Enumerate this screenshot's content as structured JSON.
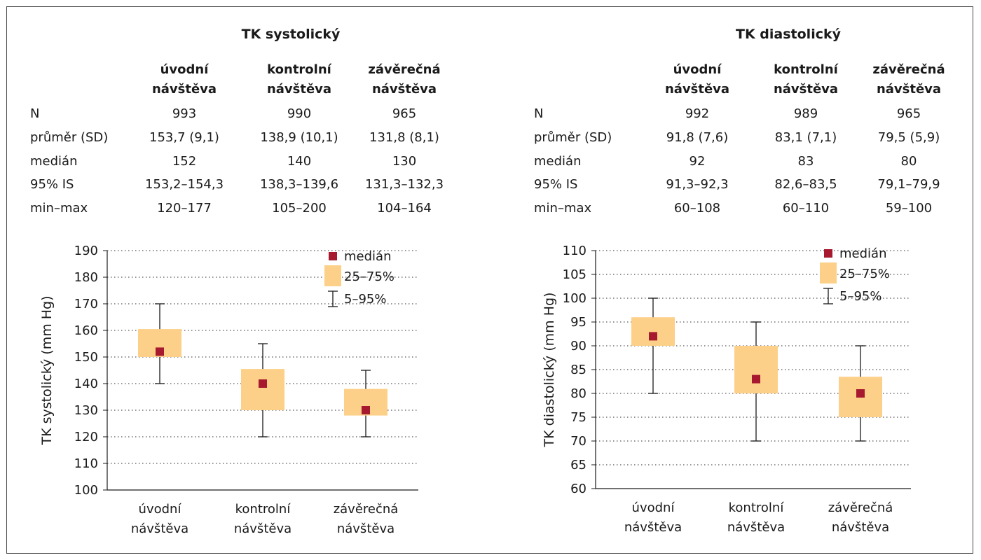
{
  "colors": {
    "median": "#a6192e",
    "box": "#fdd089",
    "whisker": "#1a1a1a",
    "grid": "#555555"
  },
  "panels": [
    {
      "title": "TK systolický",
      "col_headers": [
        [
          "úvodní",
          "návštěva"
        ],
        [
          "kontrolní",
          "návštěva"
        ],
        [
          "závěrečná",
          "návštěva"
        ]
      ],
      "rows": [
        {
          "label": "N",
          "values": [
            "993",
            "990",
            "965"
          ]
        },
        {
          "label": "průměr (SD)",
          "values": [
            "153,7 (9,1)",
            "138,9 (10,1)",
            "131,8 (8,1)"
          ]
        },
        {
          "label": "medián",
          "values": [
            "152",
            "140",
            "130"
          ]
        },
        {
          "label": "95% IS",
          "values": [
            "153,2–154,3",
            "138,3–139,6",
            "131,3–132,3"
          ]
        },
        {
          "label": "min–max",
          "values": [
            "120–177",
            "105–200",
            "104–164"
          ]
        }
      ]
    },
    {
      "title": "TK diastolický",
      "col_headers": [
        [
          "úvodní",
          "návštěva"
        ],
        [
          "kontrolní",
          "návštěva"
        ],
        [
          "závěrečná",
          "návštěva"
        ]
      ],
      "rows": [
        {
          "label": "N",
          "values": [
            "992",
            "989",
            "965"
          ]
        },
        {
          "label": "průměr (SD)",
          "values": [
            "91,8 (7,6)",
            "83,1 (7,1)",
            "79,5 (5,9)"
          ]
        },
        {
          "label": "medián",
          "values": [
            "92",
            "83",
            "80"
          ]
        },
        {
          "label": "95% IS",
          "values": [
            "91,3–92,3",
            "82,6–83,5",
            "79,1–79,9"
          ]
        },
        {
          "label": "min–max",
          "values": [
            "60–108",
            "60–110",
            "59–100"
          ]
        }
      ]
    }
  ],
  "chart_data": [
    {
      "type": "box",
      "ylabel": "TK systolický (mm Hg)",
      "ylim": [
        100,
        190
      ],
      "yticks": [
        100,
        110,
        120,
        130,
        140,
        150,
        160,
        170,
        180,
        190
      ],
      "grid": true,
      "legend_position": "top-right",
      "legend": [
        "medián",
        "25–75%",
        "5–95%"
      ],
      "categories": [
        [
          "úvodní",
          "návštěva"
        ],
        [
          "kontrolní",
          "návštěva"
        ],
        [
          "závěrečná",
          "návštěva"
        ]
      ],
      "boxes": [
        {
          "p5": 140,
          "q1": 150,
          "median": 152,
          "q3": 160.5,
          "p95": 170
        },
        {
          "p5": 120,
          "q1": 130,
          "median": 140,
          "q3": 145.5,
          "p95": 155
        },
        {
          "p5": 120,
          "q1": 128,
          "median": 130,
          "q3": 138,
          "p95": 145
        }
      ]
    },
    {
      "type": "box",
      "ylabel": "TK diastolický (mm Hg)",
      "ylim": [
        60,
        110
      ],
      "yticks": [
        60,
        65,
        70,
        75,
        80,
        85,
        90,
        95,
        100,
        105,
        110
      ],
      "grid": true,
      "legend_position": "top-right",
      "legend": [
        "medián",
        "25–75%",
        "5–95%"
      ],
      "categories": [
        [
          "úvodní",
          "návštěva"
        ],
        [
          "kontrolní",
          "návštěva"
        ],
        [
          "závěrečná",
          "návštěva"
        ]
      ],
      "boxes": [
        {
          "p5": 80,
          "q1": 90,
          "median": 92,
          "q3": 96,
          "p95": 100
        },
        {
          "p5": 70,
          "q1": 80,
          "median": 83,
          "q3": 90,
          "p95": 95
        },
        {
          "p5": 70,
          "q1": 75,
          "median": 80,
          "q3": 83.5,
          "p95": 90
        }
      ]
    }
  ]
}
